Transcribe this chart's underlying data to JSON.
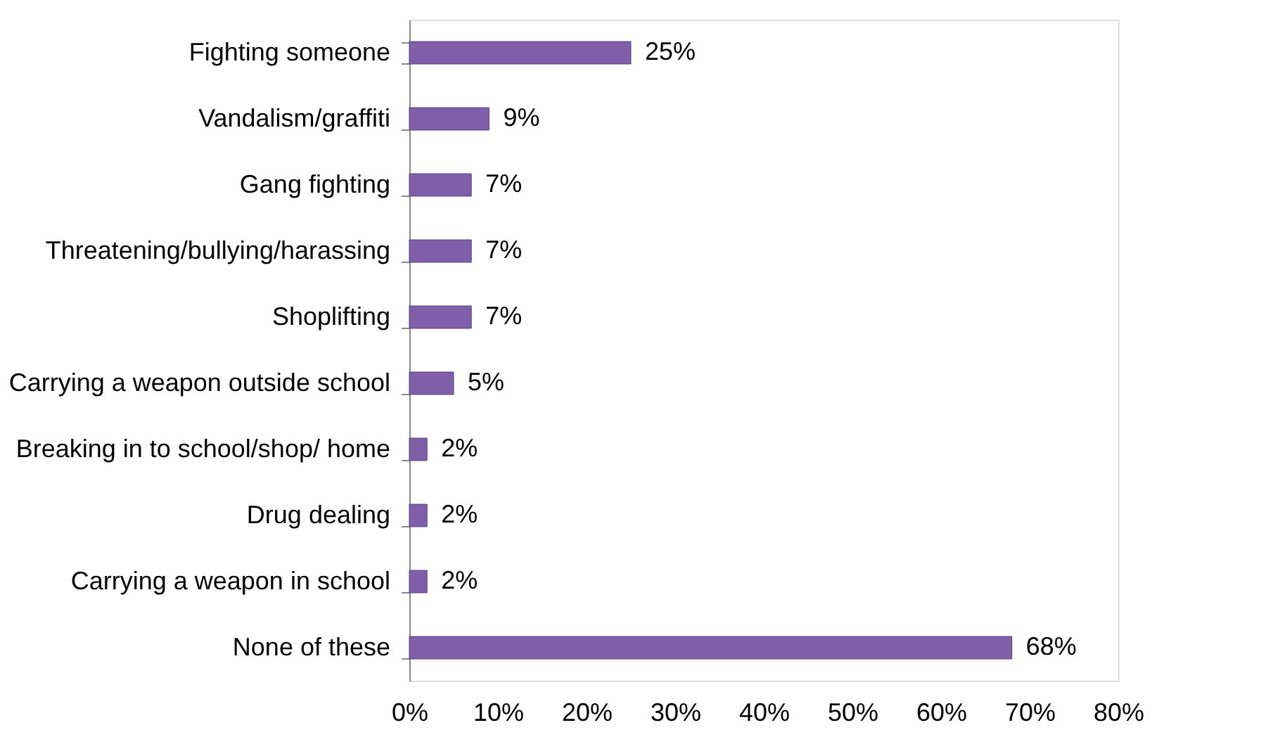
{
  "chart_data": {
    "type": "bar",
    "orientation": "horizontal",
    "categories": [
      "Fighting someone",
      "Vandalism/graffiti",
      "Gang fighting",
      "Threatening/bullying/harassing",
      "Shoplifting",
      "Carrying a weapon outside school",
      "Breaking in to school/shop/ home",
      "Drug dealing",
      "Carrying a weapon in school",
      "None of these"
    ],
    "values": [
      25,
      9,
      7,
      7,
      7,
      5,
      2,
      2,
      2,
      68
    ],
    "value_labels": [
      "25%",
      "9%",
      "7%",
      "7%",
      "7%",
      "5%",
      "2%",
      "2%",
      "2%",
      "68%"
    ],
    "color": "#7f5fa8",
    "xlim": [
      0,
      80
    ],
    "xticks": [
      {
        "value": 0,
        "label": "0%"
      },
      {
        "value": 10,
        "label": "10%"
      },
      {
        "value": 20,
        "label": "20%"
      },
      {
        "value": 30,
        "label": "30%"
      },
      {
        "value": 40,
        "label": "40%"
      },
      {
        "value": 50,
        "label": "50%"
      },
      {
        "value": 60,
        "label": "60%"
      },
      {
        "value": 70,
        "label": "70%"
      },
      {
        "value": 80,
        "label": "80%"
      }
    ],
    "grid": false
  }
}
